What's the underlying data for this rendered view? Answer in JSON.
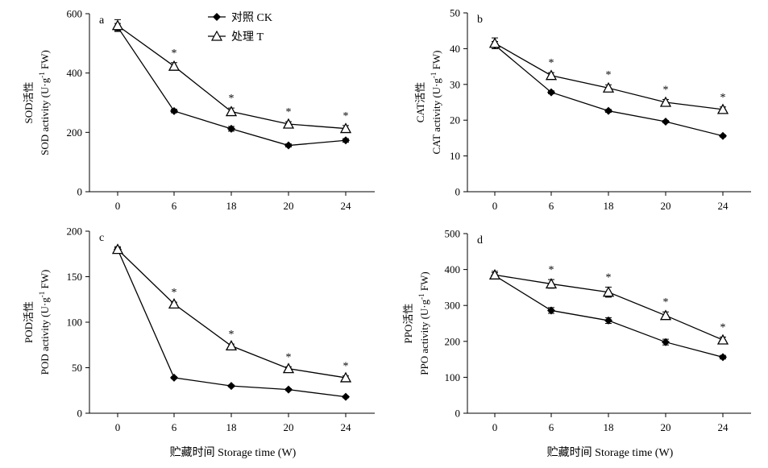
{
  "figure": {
    "xlabel": "贮藏时间 Storage time (W)"
  },
  "legend": {
    "ck": "对照 CK",
    "t": "处理 T"
  },
  "chart_data": [
    {
      "type": "line",
      "panel": "a",
      "ylabel_cn": "SOD活性",
      "ylabel_en": "SOD activity (U·g",
      "ylabel_sup": "-1",
      "ylabel_tail": " FW)",
      "ylim": [
        0,
        600
      ],
      "yticks": [
        0,
        200,
        400,
        600
      ],
      "categories": [
        "0",
        "6",
        "18",
        "20",
        "24"
      ],
      "series": [
        {
          "name": "对照 CK",
          "marker": "diamond",
          "values": [
            555,
            272,
            212,
            156,
            173
          ],
          "err": [
            12,
            6,
            8,
            5,
            6
          ]
        },
        {
          "name": "处理 T",
          "marker": "triangle",
          "values": [
            560,
            423,
            270,
            228,
            213
          ],
          "err": [
            20,
            12,
            12,
            8,
            10
          ]
        }
      ],
      "significance": [
        "",
        "*",
        "*",
        "*",
        "*"
      ]
    },
    {
      "type": "line",
      "panel": "b",
      "ylabel_cn": "CAT活性",
      "ylabel_en": "CAT activity (U·g",
      "ylabel_sup": "-1",
      "ylabel_tail": " FW)",
      "ylim": [
        0,
        50
      ],
      "yticks": [
        0,
        10,
        20,
        30,
        40,
        50
      ],
      "categories": [
        "0",
        "6",
        "18",
        "20",
        "24"
      ],
      "series": [
        {
          "name": "对照 CK",
          "marker": "diamond",
          "values": [
            41.0,
            27.8,
            22.6,
            19.6,
            15.6
          ],
          "err": [
            1.0,
            0.4,
            0.4,
            0.3,
            0.3
          ]
        },
        {
          "name": "处理 T",
          "marker": "triangle",
          "values": [
            41.5,
            32.5,
            29.0,
            25.0,
            23.0
          ],
          "err": [
            1.5,
            0.8,
            0.9,
            0.8,
            0.7
          ]
        }
      ],
      "significance": [
        "",
        "*",
        "*",
        "*",
        "*"
      ]
    },
    {
      "type": "line",
      "panel": "c",
      "ylabel_cn": "POD活性",
      "ylabel_en": "POD activity (U·g",
      "ylabel_sup": "-1",
      "ylabel_tail": " FW)",
      "ylim": [
        0,
        200
      ],
      "yticks": [
        0,
        50,
        100,
        150,
        200
      ],
      "categories": [
        "0",
        "6",
        "18",
        "20",
        "24"
      ],
      "series": [
        {
          "name": "对照 CK",
          "marker": "diamond",
          "values": [
            180,
            39,
            30,
            26,
            18
          ],
          "err": [
            2,
            1,
            1,
            1,
            1
          ]
        },
        {
          "name": "处理 T",
          "marker": "triangle",
          "values": [
            180,
            120,
            74,
            49,
            39
          ],
          "err": [
            3,
            2,
            2,
            2,
            2
          ]
        }
      ],
      "significance": [
        "",
        "*",
        "*",
        "*",
        "*"
      ]
    },
    {
      "type": "line",
      "panel": "d",
      "ylabel_cn": "PPO活性",
      "ylabel_en": "PPO activity (U·g",
      "ylabel_sup": "-1",
      "ylabel_tail": " FW)",
      "ylim": [
        0,
        500
      ],
      "yticks": [
        0,
        100,
        200,
        300,
        400,
        500
      ],
      "categories": [
        "0",
        "6",
        "18",
        "20",
        "24"
      ],
      "series": [
        {
          "name": "对照 CK",
          "marker": "diamond",
          "values": [
            383,
            286,
            258,
            198,
            156
          ],
          "err": [
            8,
            8,
            8,
            8,
            5
          ]
        },
        {
          "name": "处理 T",
          "marker": "triangle",
          "values": [
            385,
            360,
            337,
            272,
            204
          ],
          "err": [
            10,
            12,
            14,
            10,
            8
          ]
        }
      ],
      "significance": [
        "",
        "*",
        "*",
        "*",
        "*"
      ]
    }
  ]
}
